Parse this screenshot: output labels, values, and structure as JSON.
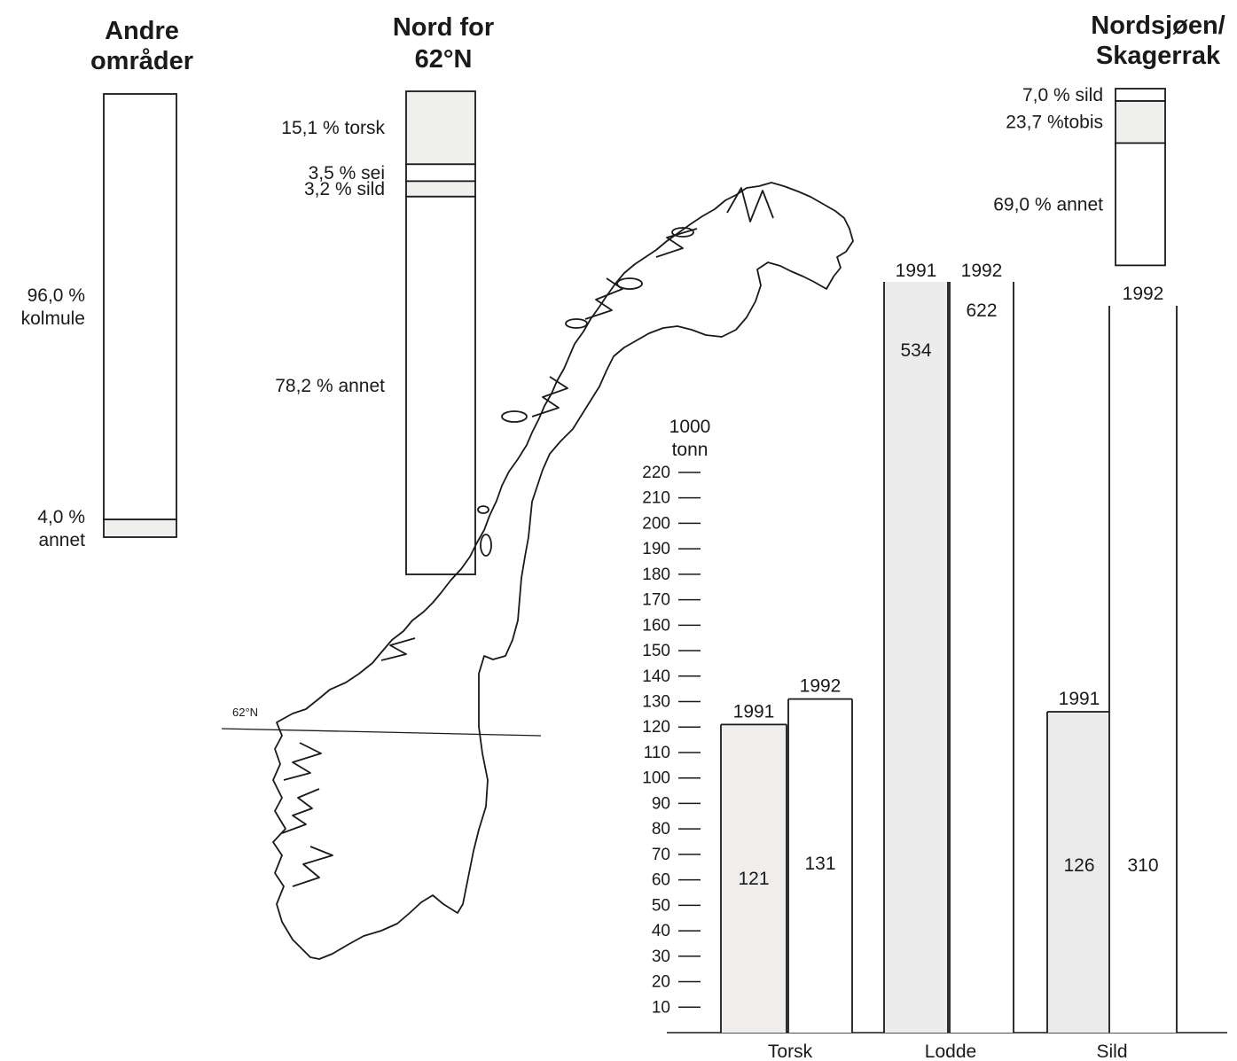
{
  "colors": {
    "shade": "#efefee",
    "shade_sild": "#ebebeb",
    "shade_lodde": "#ececec",
    "shade_torsk": "#f0eeed",
    "line": "#1a1a1a"
  },
  "map": {
    "latitude_label": "62°N"
  },
  "panels": {
    "andre": {
      "title": [
        "Andre",
        "områder"
      ],
      "segments": [
        {
          "pct": 96.0,
          "label_lines": [
            "96,0 %",
            "kolmule"
          ],
          "shaded": false
        },
        {
          "pct": 4.0,
          "label_lines": [
            "4,0 %",
            "annet"
          ],
          "shaded": true
        }
      ]
    },
    "nord": {
      "title": [
        "Nord for",
        "62°N"
      ],
      "segments": [
        {
          "pct": 15.1,
          "label": "15,1 % torsk",
          "shaded": true
        },
        {
          "pct": 3.5,
          "label": "3,5 % sei",
          "shaded": false
        },
        {
          "pct": 3.2,
          "label": "3,2 % sild",
          "shaded": true
        },
        {
          "pct": 78.2,
          "label": "78,2 % annet",
          "shaded": false
        }
      ]
    },
    "nordsjoen": {
      "title": [
        "Nordsjøen/",
        "Skagerrak"
      ],
      "segments": [
        {
          "pct": 7.0,
          "label": "7,0 % sild",
          "shaded": false
        },
        {
          "pct": 23.7,
          "label": "23,7 %tobis",
          "shaded": true
        },
        {
          "pct": 69.0,
          "label": "69,0 % annet",
          "shaded": false
        }
      ]
    }
  },
  "chart_data": {
    "type": "bar",
    "unit_label": [
      "1000",
      "tonn"
    ],
    "ylim": [
      0,
      220
    ],
    "yticks": [
      10,
      20,
      30,
      40,
      50,
      60,
      70,
      80,
      90,
      100,
      110,
      120,
      130,
      140,
      150,
      160,
      170,
      180,
      190,
      200,
      210,
      220
    ],
    "categories": [
      "Torsk",
      "Lodde",
      "Sild"
    ],
    "series": [
      {
        "name": "1991",
        "values": [
          121,
          534,
          126
        ],
        "value_labels": [
          "121",
          "534",
          "126"
        ]
      },
      {
        "name": "1992",
        "values": [
          131,
          622,
          310
        ],
        "value_labels": [
          "131",
          "622",
          "310"
        ]
      }
    ],
    "bar_year_labels": [
      [
        "1991",
        "1992"
      ],
      [
        "1991",
        "1992"
      ],
      [
        "1991",
        "1992"
      ]
    ]
  }
}
